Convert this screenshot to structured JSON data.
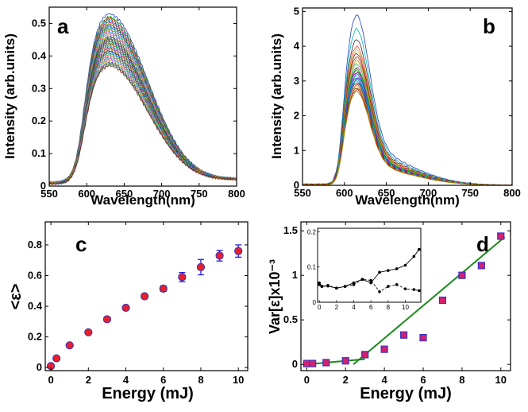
{
  "chart_data": [
    {
      "id": "a",
      "panel_label": "a",
      "type": "line",
      "xlabel": "Wavelength(nm)",
      "ylabel": "Intensity (arb.units)",
      "xlim": [
        550,
        800
      ],
      "ylim": [
        0,
        0.55
      ],
      "xticks": [
        "550",
        "600",
        "650",
        "700",
        "750",
        "800"
      ],
      "yticks": [
        "0",
        "0.1",
        "0.2",
        "0.3",
        "0.4",
        "0.5"
      ],
      "description_of_series": "many overlapping emission spectra",
      "peak_x": 628,
      "peak_values": [
        0.53,
        0.52,
        0.515,
        0.51,
        0.505,
        0.5,
        0.495,
        0.49,
        0.485,
        0.48,
        0.475,
        0.47,
        0.465,
        0.46,
        0.455,
        0.45,
        0.445,
        0.44,
        0.435,
        0.43,
        0.425,
        0.42,
        0.415,
        0.41,
        0.405,
        0.4,
        0.395,
        0.39,
        0.385,
        0.38,
        0.375,
        0.37
      ],
      "edge_values": {
        "x550": 0.01,
        "x800": 0.02
      }
    },
    {
      "id": "b",
      "panel_label": "b",
      "type": "line",
      "xlabel": "Wavelength(nm)",
      "ylabel": "Intensity (arb.units)",
      "xlim": [
        550,
        800
      ],
      "ylim": [
        0,
        5.1
      ],
      "xticks": [
        "550",
        "600",
        "650",
        "700",
        "750",
        "800"
      ],
      "yticks": [
        "0",
        "1",
        "2",
        "3",
        "4",
        "5"
      ],
      "description_of_series": "many overlapping emission spectra",
      "peak_x": 614,
      "peak_values": [
        4.9,
        4.5,
        4.2,
        4.0,
        3.9,
        3.8,
        3.7,
        3.6,
        3.5,
        3.4,
        3.35,
        3.3,
        3.25,
        3.2,
        3.15,
        3.1,
        3.05,
        3.0,
        2.95,
        2.9,
        2.85,
        2.8,
        2.75,
        2.7
      ],
      "edge_values": {
        "x550": 0.03,
        "x800": 0.03
      }
    },
    {
      "id": "c",
      "panel_label": "c",
      "type": "scatter",
      "xlabel": "Energy (mJ)",
      "ylabel": "<ε>",
      "xlim": [
        -0.3,
        10.5
      ],
      "ylim": [
        -0.02,
        0.95
      ],
      "xticks": [
        "0",
        "2",
        "4",
        "6",
        "8",
        "10"
      ],
      "yticks": [
        "0",
        "0.2",
        "0.4",
        "0.6",
        "0.8"
      ],
      "x": [
        0,
        0.3,
        1,
        2,
        3,
        4,
        5,
        6,
        7,
        8,
        9,
        10
      ],
      "y": [
        0.01,
        0.06,
        0.145,
        0.23,
        0.315,
        0.39,
        0.465,
        0.515,
        0.59,
        0.655,
        0.73,
        0.76
      ],
      "yerr": [
        0.005,
        0.008,
        0.01,
        0.012,
        0.015,
        0.012,
        0.015,
        0.018,
        0.03,
        0.05,
        0.035,
        0.04
      ],
      "marker_color": "#e8202a",
      "marker_edge": "#3030c0",
      "errorbar_color": "#2020e0"
    },
    {
      "id": "d",
      "panel_label": "d",
      "type": "scatter",
      "xlabel": "Energy (mJ)",
      "ylabel": "Var[ε]x10⁻³",
      "xlim": [
        -0.3,
        10.5
      ],
      "ylim": [
        -0.07,
        1.6
      ],
      "xticks": [
        "0",
        "2",
        "4",
        "6",
        "8",
        "10"
      ],
      "yticks": [
        "0",
        "0.5",
        "1",
        "1.5"
      ],
      "x": [
        0,
        0.3,
        1,
        2,
        3,
        4,
        5,
        6,
        7,
        8,
        9,
        10
      ],
      "y": [
        0.01,
        0.01,
        0.02,
        0.04,
        0.11,
        0.17,
        0.33,
        0.3,
        0.72,
        1.0,
        1.11,
        1.44
      ],
      "marker_color": "#d5206e",
      "marker_edge": "#3a30c8",
      "fit_lines": [
        {
          "x": [
            0,
            3
          ],
          "y": [
            0.0,
            0.06
          ],
          "color": "#1a8a1a"
        },
        {
          "x": [
            2.4,
            10.2
          ],
          "y": [
            0.0,
            1.43
          ],
          "color": "#1a8a1a"
        }
      ],
      "inset": {
        "xlim": [
          -0.2,
          11.8
        ],
        "ylim": [
          0,
          0.21
        ],
        "xticks": [
          "0",
          "2",
          "4",
          "6",
          "8",
          "10"
        ],
        "yticks": [
          "0",
          "0.1",
          "0.2"
        ],
        "series": [
          {
            "name": "solid",
            "style": "solid",
            "x": [
              0,
              0.3,
              1,
              2,
              3,
              4,
              5,
              6,
              7,
              8,
              9,
              10,
              11,
              11.6
            ],
            "y": [
              0.055,
              0.045,
              0.046,
              0.04,
              0.045,
              0.055,
              0.065,
              0.055,
              0.085,
              0.09,
              0.095,
              0.105,
              0.13,
              0.15
            ]
          },
          {
            "name": "dashed",
            "style": "dashed",
            "x": [
              0,
              0.3,
              1,
              2,
              3,
              4,
              5,
              6,
              7,
              8,
              9,
              10,
              11,
              11.6
            ],
            "y": [
              0.05,
              0.045,
              0.048,
              0.04,
              0.045,
              0.05,
              0.065,
              0.062,
              0.03,
              0.045,
              0.05,
              0.038,
              0.036,
              0.033
            ]
          }
        ]
      }
    }
  ]
}
